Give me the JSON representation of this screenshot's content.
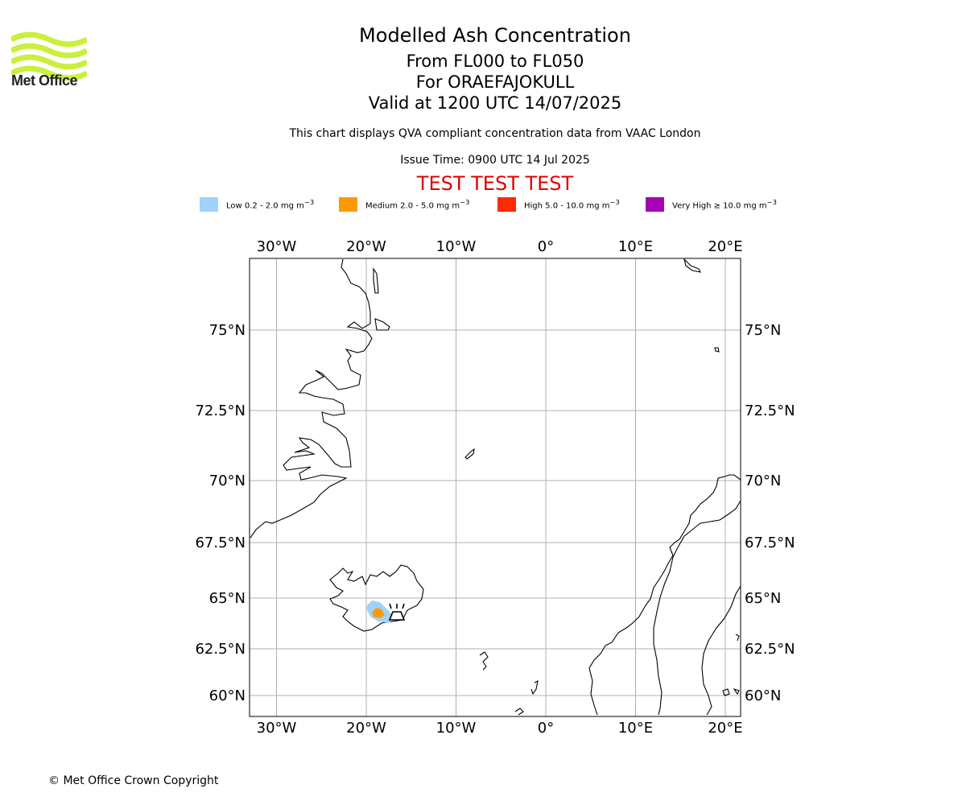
{
  "logo": {
    "text": "Met Office",
    "color": "#c8f03c"
  },
  "header": {
    "title": "Modelled Ash Concentration",
    "levels": "From FL000 to FL050",
    "volcano": "For ORAEFAJOKULL",
    "valid": "Valid at 1200 UTC 14/07/2025",
    "description": "This chart displays QVA compliant concentration data from VAAC London",
    "issue_time": "Issue Time: 0900 UTC 14 Jul 2025",
    "test_banner": "TEST TEST TEST"
  },
  "legend": [
    {
      "label": "Low 0.2 - 2.0 mg m",
      "sup": "−3",
      "color": "#a0d2fa"
    },
    {
      "label": "Medium 2.0 - 5.0 mg m",
      "sup": "−3",
      "color": "#ff9900"
    },
    {
      "label": "High 5.0 - 10.0 mg m",
      "sup": "−3",
      "color": "#ff2a00"
    },
    {
      "label": "Very High  ≥  10.0 mg m",
      "sup": "−3",
      "color": "#a800b4"
    }
  ],
  "map": {
    "lon_ticks": [
      {
        "value": -30,
        "label": "30°W"
      },
      {
        "value": -20,
        "label": "20°W"
      },
      {
        "value": -10,
        "label": "10°W"
      },
      {
        "value": 0,
        "label": "0°"
      },
      {
        "value": 10,
        "label": "10°E"
      },
      {
        "value": 20,
        "label": "20°E"
      }
    ],
    "lat_ticks": [
      {
        "value": 75,
        "label": "75°N"
      },
      {
        "value": 72.5,
        "label": "72.5°N"
      },
      {
        "value": 70,
        "label": "70°N"
      },
      {
        "value": 67.5,
        "label": "67.5°N"
      },
      {
        "value": 65,
        "label": "65°N"
      },
      {
        "value": 62.5,
        "label": "62.5°N"
      },
      {
        "value": 60,
        "label": "60°N"
      }
    ],
    "grid": true,
    "volcano_symbol": "volcano-icon",
    "ash_levels_present": [
      "Low",
      "Medium"
    ]
  },
  "footer": {
    "copyright": "© Met Office Crown Copyright"
  }
}
